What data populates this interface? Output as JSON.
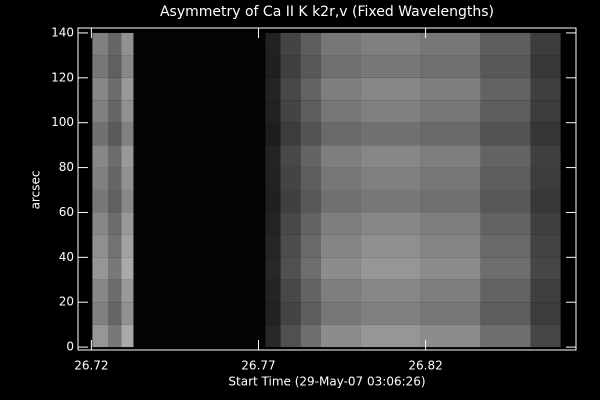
{
  "chart_data": {
    "type": "heatmap",
    "title": "Asymmetry of Ca II K k2r,v (Fixed Wavelengths)",
    "x_label": "Start Time (29-May-07 03:06:26)",
    "y_label": "arcsec",
    "xlim": [
      26.716,
      26.865
    ],
    "ylim": [
      -1.3,
      142.2
    ],
    "xticks": [
      26.72,
      26.77,
      26.82
    ],
    "yticks": [
      0,
      20,
      40,
      60,
      80,
      100,
      120,
      140
    ],
    "x_edges": [
      26.7203,
      26.7251,
      26.729,
      26.7326,
      26.7721,
      26.7766,
      26.7826,
      26.7886,
      26.8005,
      26.8185,
      26.8365,
      26.8514,
      26.8604
    ],
    "column_intensity": [
      150,
      120,
      170,
      5,
      40,
      80,
      110,
      140,
      150,
      140,
      110,
      70
    ],
    "y_edges": [
      0,
      10,
      20,
      30,
      40,
      50,
      60,
      70,
      80,
      90,
      100,
      110,
      120,
      130,
      140
    ],
    "row_factor": [
      1.0,
      0.85,
      0.9,
      1.0,
      0.95,
      0.9,
      0.8,
      0.85,
      0.9,
      0.75,
      0.85,
      0.9,
      0.8,
      0.85
    ],
    "color": "#ffffff"
  }
}
